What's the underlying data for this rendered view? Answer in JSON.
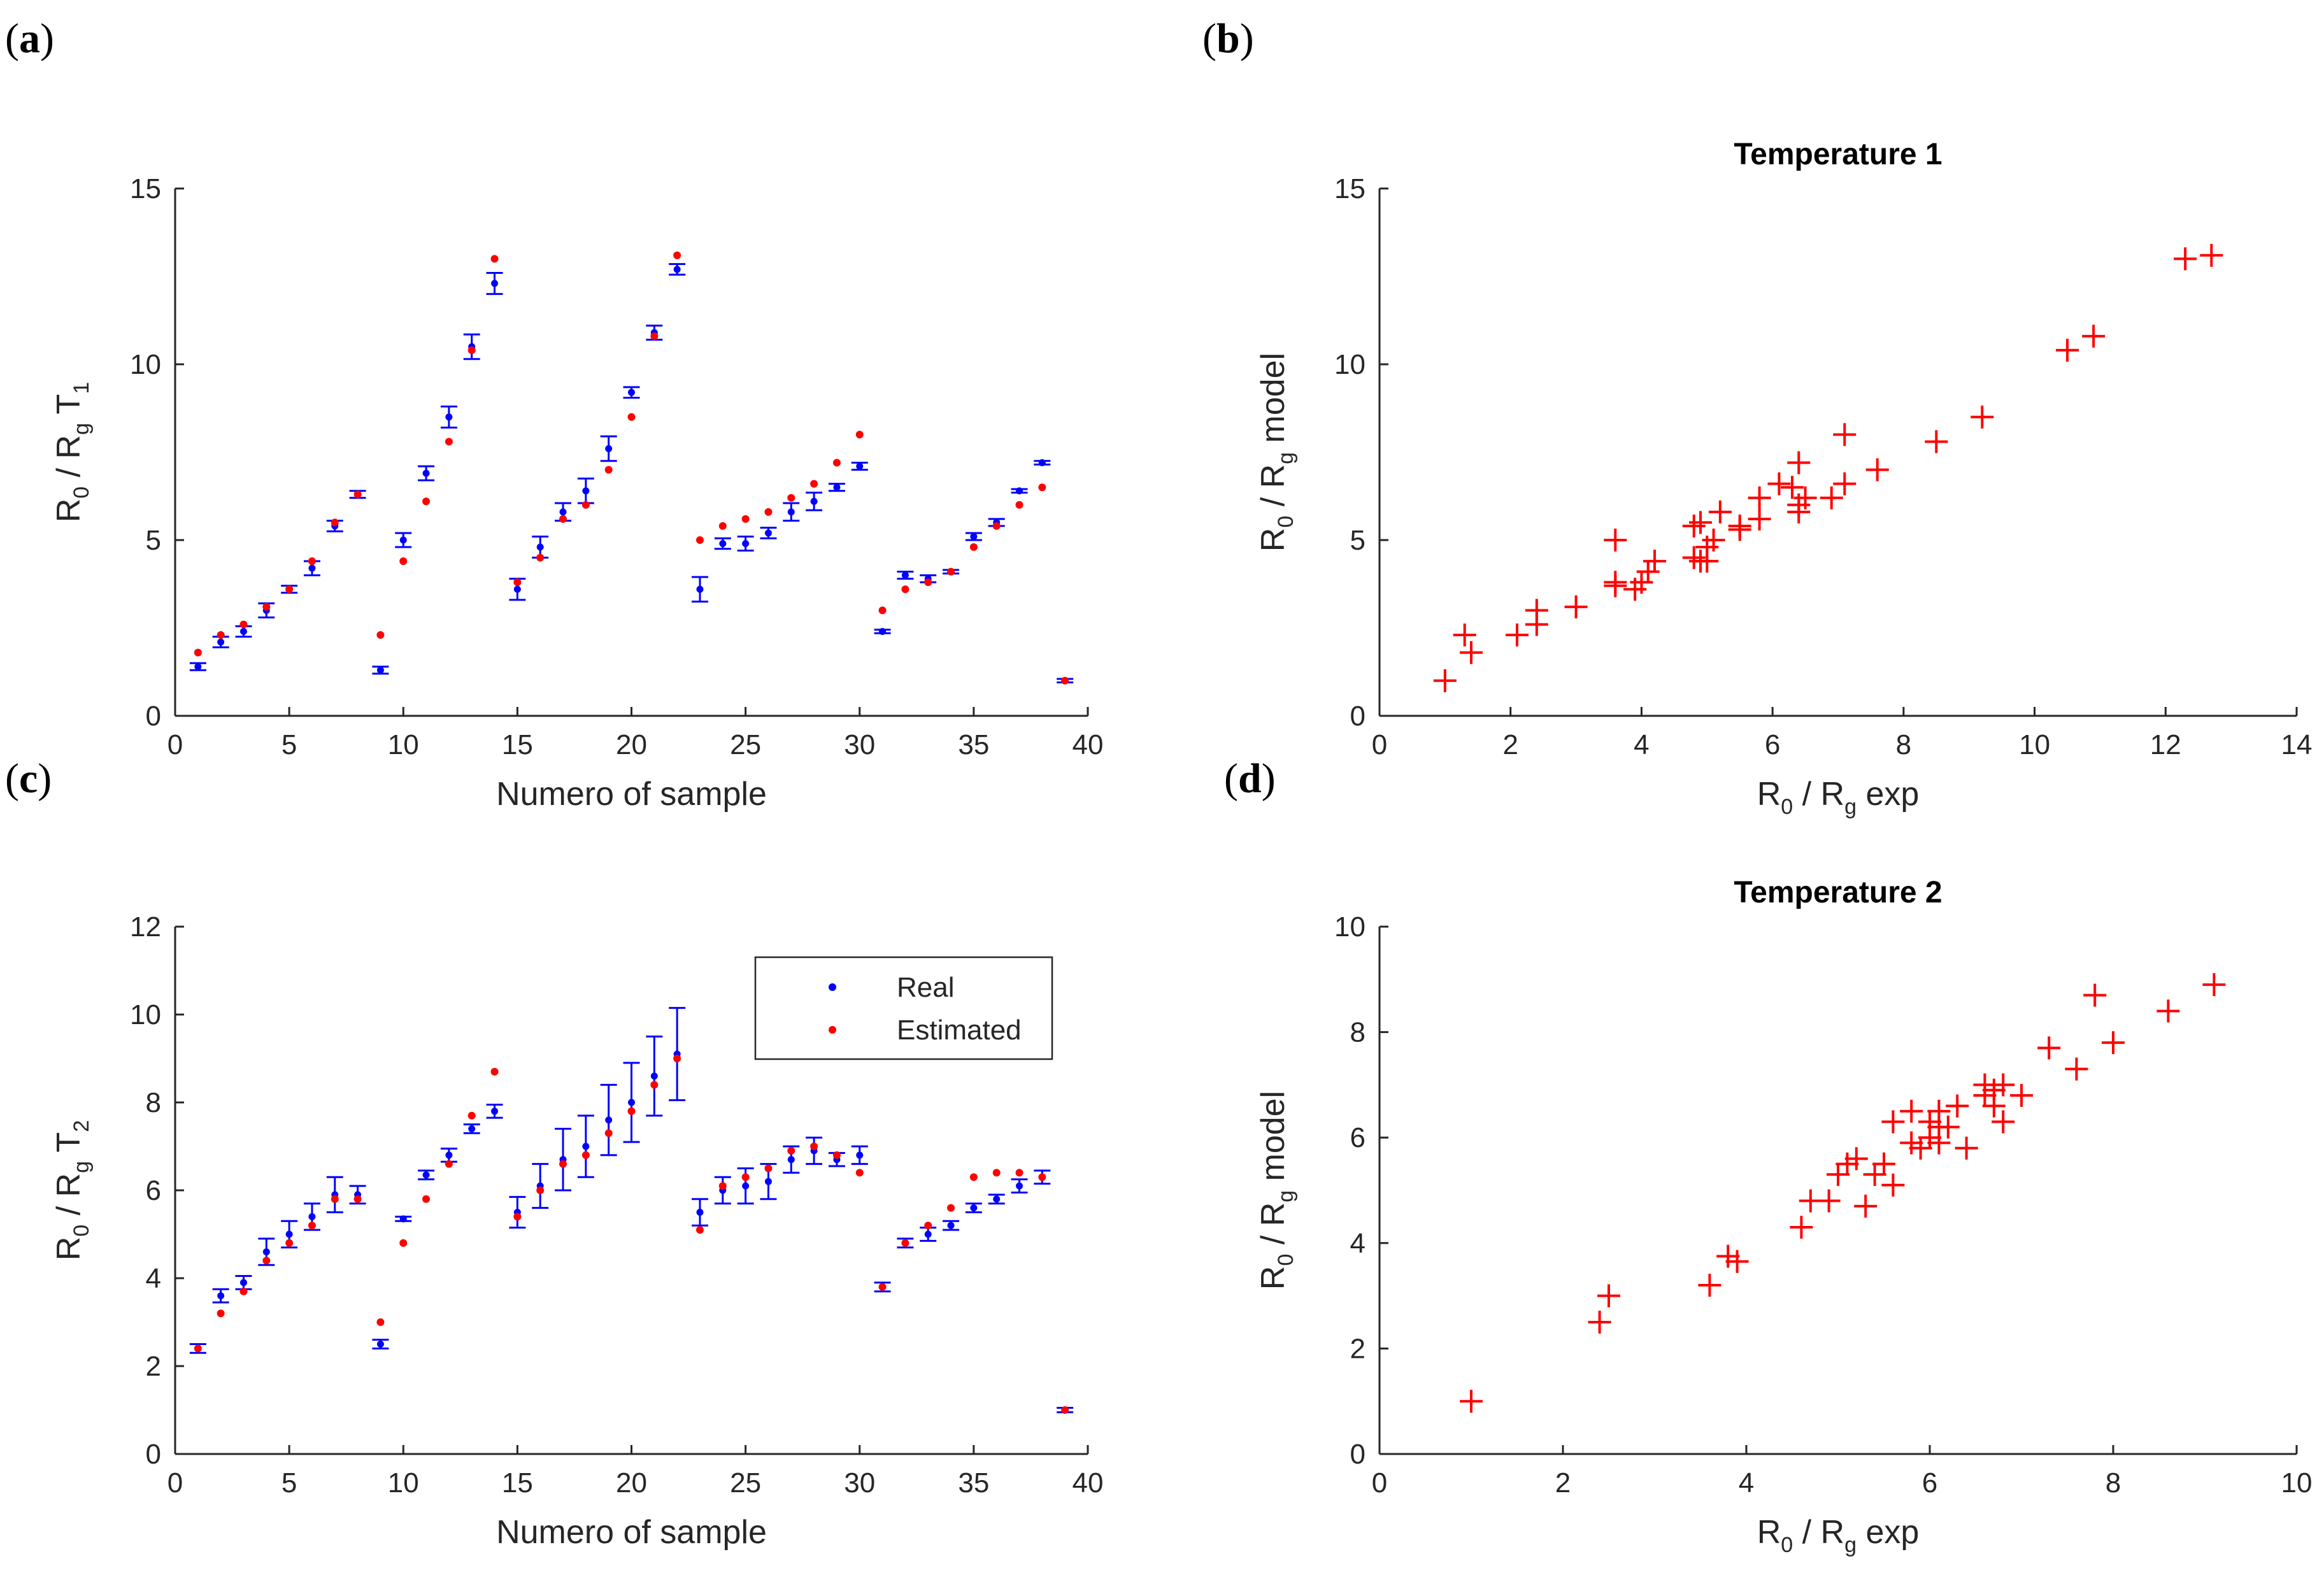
{
  "panel_labels": [
    "a",
    "b",
    "c",
    "d"
  ],
  "colors": {
    "real": "#0000ff",
    "estimated": "#ff0000",
    "axis": "#262626"
  },
  "legend": {
    "real": "Real",
    "estimated": "Estimated"
  },
  "chart_data": [
    {
      "id": "a",
      "type": "scatter",
      "title": "",
      "xlabel": "Numero of sample",
      "ylabel": {
        "main": "R",
        "sub0": "0",
        "mid": " / R",
        "sub1": "g",
        "tail": " T",
        "sub2": "1"
      },
      "xlim": [
        0,
        40
      ],
      "ylim": [
        0,
        15
      ],
      "xticks": [
        0,
        5,
        10,
        15,
        20,
        25,
        30,
        35,
        40
      ],
      "yticks": [
        0,
        5,
        10,
        15
      ],
      "series": [
        {
          "name": "Real",
          "x": [
            1,
            2,
            3,
            4,
            5,
            6,
            7,
            8,
            9,
            10,
            11,
            12,
            13,
            14,
            15,
            16,
            17,
            18,
            19,
            20,
            21,
            22,
            23,
            24,
            25,
            26,
            27,
            28,
            29,
            30,
            31,
            32,
            33,
            34,
            35,
            36,
            37,
            38,
            39
          ],
          "y": [
            1.4,
            2.1,
            2.4,
            3.0,
            3.6,
            4.2,
            5.4,
            6.3,
            1.3,
            5.0,
            6.9,
            8.5,
            10.5,
            12.3,
            3.6,
            4.8,
            5.8,
            6.4,
            7.6,
            9.2,
            10.9,
            12.7,
            3.6,
            4.9,
            4.9,
            5.2,
            5.8,
            6.1,
            6.5,
            7.1,
            2.4,
            4.0,
            3.9,
            4.1,
            5.1,
            5.5,
            6.4,
            7.2,
            1.0
          ],
          "err": [
            0.1,
            0.15,
            0.15,
            0.2,
            0.1,
            0.2,
            0.15,
            0.1,
            0.1,
            0.2,
            0.2,
            0.3,
            0.35,
            0.3,
            0.3,
            0.3,
            0.25,
            0.35,
            0.35,
            0.15,
            0.2,
            0.15,
            0.35,
            0.15,
            0.2,
            0.15,
            0.25,
            0.25,
            0.1,
            0.1,
            0.05,
            0.1,
            0.1,
            0.05,
            0.1,
            0.1,
            0.05,
            0.05,
            0.05
          ]
        },
        {
          "name": "Estimated",
          "x": [
            1,
            2,
            3,
            4,
            5,
            6,
            7,
            8,
            9,
            10,
            11,
            12,
            13,
            14,
            15,
            16,
            17,
            18,
            19,
            20,
            21,
            22,
            23,
            24,
            25,
            26,
            27,
            28,
            29,
            30,
            31,
            32,
            33,
            34,
            35,
            36,
            37,
            38,
            39
          ],
          "y": [
            1.8,
            2.3,
            2.6,
            3.1,
            3.6,
            4.4,
            5.5,
            6.3,
            2.3,
            4.4,
            6.1,
            7.8,
            10.4,
            13.0,
            3.8,
            4.5,
            5.6,
            6.0,
            7.0,
            8.5,
            10.8,
            13.1,
            5.0,
            5.4,
            5.6,
            5.8,
            6.2,
            6.6,
            7.2,
            8.0,
            3.0,
            3.6,
            3.8,
            4.1,
            4.8,
            5.4,
            6.0,
            6.5,
            1.0
          ]
        }
      ]
    },
    {
      "id": "b",
      "type": "scatter",
      "title": "Temperature 1",
      "xlabel": {
        "main": "R",
        "sub0": "0",
        "mid": " / R",
        "sub1": "g",
        "tail": " exp"
      },
      "ylabel": {
        "main": "R",
        "sub0": "0",
        "mid": " / R",
        "sub1": "g",
        "tail": " model"
      },
      "xlim": [
        0,
        14
      ],
      "ylim": [
        0,
        15
      ],
      "xticks": [
        0,
        2,
        4,
        6,
        8,
        10,
        12,
        14
      ],
      "yticks": [
        0,
        5,
        10,
        15
      ],
      "series": [
        {
          "name": "",
          "x": [
            1.0,
            1.3,
            1.4,
            2.1,
            2.4,
            2.4,
            3.0,
            3.6,
            3.6,
            3.6,
            3.9,
            4.0,
            4.1,
            4.2,
            4.8,
            4.8,
            4.9,
            4.9,
            5.0,
            5.0,
            5.1,
            5.2,
            5.5,
            5.5,
            5.8,
            5.8,
            6.1,
            6.3,
            6.4,
            6.4,
            6.4,
            6.5,
            6.9,
            7.1,
            7.1,
            7.6,
            8.5,
            9.2,
            10.5,
            10.9,
            12.3,
            12.7
          ],
          "y": [
            1.0,
            2.3,
            1.8,
            2.3,
            2.6,
            3.0,
            3.1,
            3.8,
            3.7,
            5.0,
            3.6,
            3.8,
            4.1,
            4.4,
            5.4,
            4.5,
            5.5,
            4.4,
            4.8,
            4.4,
            5.0,
            5.8,
            5.4,
            5.3,
            6.2,
            5.6,
            6.6,
            6.5,
            6.0,
            5.8,
            7.2,
            6.2,
            6.2,
            8.0,
            6.6,
            7.0,
            7.8,
            8.5,
            10.4,
            10.8,
            13.0,
            13.1
          ]
        }
      ]
    },
    {
      "id": "c",
      "type": "scatter",
      "title": "",
      "xlabel": "Numero of sample",
      "ylabel": {
        "main": "R",
        "sub0": "0",
        "mid": " / R",
        "sub1": "g",
        "tail": " T",
        "sub2": "2"
      },
      "xlim": [
        0,
        40
      ],
      "ylim": [
        0,
        12
      ],
      "xticks": [
        0,
        5,
        10,
        15,
        20,
        25,
        30,
        35,
        40
      ],
      "yticks": [
        0,
        2,
        4,
        6,
        8,
        10,
        12
      ],
      "legend": "inside-top-right",
      "series": [
        {
          "name": "Real",
          "x": [
            1,
            2,
            3,
            4,
            5,
            6,
            7,
            8,
            9,
            10,
            11,
            12,
            13,
            14,
            15,
            16,
            17,
            18,
            19,
            20,
            21,
            22,
            23,
            24,
            25,
            26,
            27,
            28,
            29,
            30,
            31,
            32,
            33,
            34,
            35,
            36,
            37,
            38,
            39
          ],
          "y": [
            2.4,
            3.6,
            3.9,
            4.6,
            5.0,
            5.4,
            5.9,
            5.9,
            2.5,
            5.35,
            6.35,
            6.8,
            7.4,
            7.8,
            5.5,
            6.1,
            6.7,
            7.0,
            7.6,
            8.0,
            8.6,
            9.1,
            5.5,
            6.0,
            6.1,
            6.2,
            6.7,
            6.9,
            6.7,
            6.8,
            3.8,
            4.8,
            5.0,
            5.2,
            5.6,
            5.8,
            6.1,
            6.3,
            1.0
          ],
          "err": [
            0.1,
            0.15,
            0.15,
            0.3,
            0.3,
            0.3,
            0.4,
            0.2,
            0.1,
            0.05,
            0.1,
            0.15,
            0.1,
            0.15,
            0.35,
            0.5,
            0.7,
            0.7,
            0.8,
            0.9,
            0.9,
            1.05,
            0.3,
            0.3,
            0.4,
            0.4,
            0.3,
            0.3,
            0.15,
            0.2,
            0.1,
            0.1,
            0.15,
            0.1,
            0.1,
            0.1,
            0.15,
            0.15,
            0.05
          ]
        },
        {
          "name": "Estimated",
          "x": [
            1,
            2,
            3,
            4,
            5,
            6,
            7,
            8,
            9,
            10,
            11,
            12,
            13,
            14,
            15,
            16,
            17,
            18,
            19,
            20,
            21,
            22,
            23,
            24,
            25,
            26,
            27,
            28,
            29,
            30,
            31,
            32,
            33,
            34,
            35,
            36,
            37,
            38,
            39
          ],
          "y": [
            2.4,
            3.2,
            3.7,
            4.4,
            4.8,
            5.2,
            5.8,
            5.8,
            3.0,
            4.8,
            5.8,
            6.6,
            7.7,
            8.7,
            5.4,
            6.0,
            6.6,
            6.8,
            7.3,
            7.8,
            8.4,
            9.0,
            5.1,
            6.1,
            6.3,
            6.5,
            6.9,
            7.0,
            6.8,
            6.4,
            3.8,
            4.8,
            5.2,
            5.6,
            6.3,
            6.4,
            6.4,
            6.3,
            1.0
          ]
        }
      ]
    },
    {
      "id": "d",
      "type": "scatter",
      "title": "Temperature 2",
      "xlabel": {
        "main": "R",
        "sub0": "0",
        "mid": " / R",
        "sub1": "g",
        "tail": " exp"
      },
      "ylabel": {
        "main": "R",
        "sub0": "0",
        "mid": " / R",
        "sub1": "g",
        "tail": " model"
      },
      "xlim": [
        0,
        10
      ],
      "ylim": [
        0,
        10
      ],
      "xticks": [
        0,
        2,
        4,
        6,
        8,
        10
      ],
      "yticks": [
        0,
        2,
        4,
        6,
        8,
        10
      ],
      "series": [
        {
          "name": "",
          "x": [
            1.0,
            2.4,
            2.5,
            3.6,
            3.8,
            3.9,
            4.6,
            4.7,
            4.9,
            5.0,
            5.1,
            5.2,
            5.3,
            5.4,
            5.5,
            5.6,
            5.6,
            5.8,
            5.8,
            5.9,
            6.0,
            6.0,
            6.1,
            6.1,
            6.1,
            6.2,
            6.3,
            6.4,
            6.6,
            6.6,
            6.7,
            6.7,
            6.8,
            6.8,
            7.0,
            7.3,
            7.6,
            7.8,
            8.0,
            8.6,
            9.1
          ],
          "y": [
            1.0,
            2.5,
            3.0,
            3.2,
            3.75,
            3.65,
            4.3,
            4.8,
            4.8,
            5.3,
            5.5,
            5.6,
            4.7,
            5.3,
            5.5,
            5.1,
            6.3,
            5.9,
            6.5,
            5.8,
            6.0,
            6.3,
            6.5,
            6.2,
            5.9,
            6.2,
            6.6,
            5.8,
            6.8,
            7.0,
            6.6,
            6.9,
            6.3,
            7.0,
            6.8,
            7.7,
            7.3,
            8.7,
            7.8,
            8.4,
            8.9
          ]
        }
      ]
    }
  ]
}
